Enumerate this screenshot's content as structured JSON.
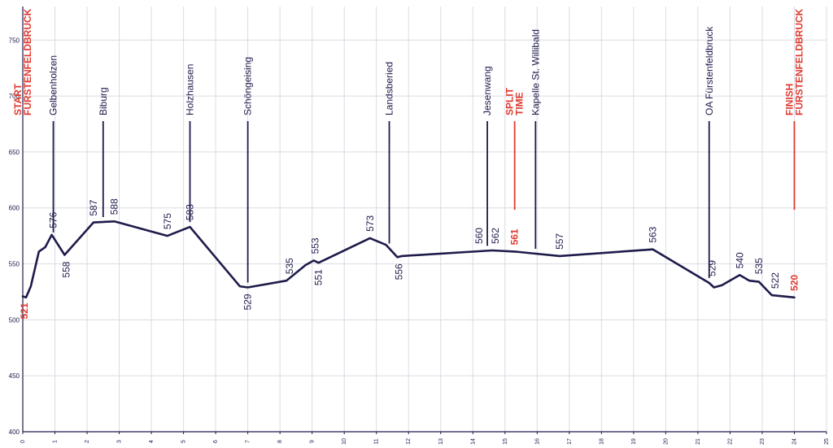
{
  "chart_data": {
    "type": "line",
    "title": "",
    "xlabel": "",
    "ylabel": "",
    "xlim": [
      0,
      25
    ],
    "ylim": [
      400,
      780
    ],
    "x_ticks": [
      0,
      1,
      2,
      3,
      4,
      5,
      6,
      7,
      8,
      9,
      10,
      11,
      12,
      13,
      14,
      15,
      16,
      17,
      18,
      19,
      20,
      21,
      22,
      23,
      24,
      25
    ],
    "y_ticks": [
      400,
      450,
      500,
      550,
      600,
      650,
      700,
      750
    ],
    "grid": true,
    "colors": {
      "line": "#1e1b4b",
      "highlight": "#e03a2f",
      "grid": "#d9dce3"
    },
    "series": [
      {
        "x": [
          0,
          0.1,
          0.25,
          0.5,
          0.7,
          0.9,
          1.3,
          2.2,
          2.85,
          4.5,
          5.2,
          6.75,
          7.0,
          8.2,
          8.8,
          9.05,
          9.2,
          10.8,
          11.3,
          11.65,
          11.8,
          14.6,
          15.3,
          16.7,
          19.6,
          21.35,
          21.5,
          21.75,
          22.3,
          22.6,
          22.9,
          23.3,
          24.0
        ],
        "y": [
          521,
          520,
          530,
          561,
          565,
          576,
          558,
          587,
          588,
          575,
          583,
          530,
          529,
          535,
          549,
          553,
          551,
          573,
          567,
          556,
          557,
          562,
          561,
          557,
          563,
          533,
          529,
          531,
          540,
          535,
          534,
          522,
          520
        ]
      }
    ],
    "locations": [
      {
        "name": "START FÜRSTENFELDBRUCK",
        "x": 0.0,
        "highlight": true,
        "marker_line": false
      },
      {
        "name": "Gelbenholzen",
        "x": 0.95,
        "highlight": false,
        "marker_line": true
      },
      {
        "name": "Biburg",
        "x": 2.5,
        "highlight": false,
        "marker_line": true
      },
      {
        "name": "Holzhausen",
        "x": 5.2,
        "highlight": false,
        "marker_line": true
      },
      {
        "name": "Schöngeising",
        "x": 7.0,
        "highlight": false,
        "marker_line": true
      },
      {
        "name": "Landsberied",
        "x": 11.4,
        "highlight": false,
        "marker_line": true
      },
      {
        "name": "Jesenwang",
        "x": 14.45,
        "highlight": false,
        "marker_line": true
      },
      {
        "name": "SPLIT TIME",
        "x": 15.3,
        "highlight": true,
        "marker_line": true
      },
      {
        "name": "Kapelle St. Willibald",
        "x": 15.95,
        "highlight": false,
        "marker_line": true
      },
      {
        "name": "OA Fürstenfeldbruck",
        "x": 21.35,
        "highlight": false,
        "marker_line": true
      },
      {
        "name": "FINISH FÜRSTENFELDBRUCK",
        "x": 24.0,
        "highlight": true,
        "marker_line": true
      }
    ],
    "elevation_labels": [
      {
        "text": "521",
        "x": 0.05,
        "y": 521,
        "highlight": true,
        "side": "below"
      },
      {
        "text": "576",
        "x": 0.95,
        "y": 576,
        "highlight": false,
        "side": "above"
      },
      {
        "text": "558",
        "x": 1.35,
        "y": 558,
        "highlight": false,
        "side": "below"
      },
      {
        "text": "587",
        "x": 2.2,
        "y": 587,
        "highlight": false,
        "side": "above"
      },
      {
        "text": "588",
        "x": 2.85,
        "y": 588,
        "highlight": false,
        "side": "above"
      },
      {
        "text": "575",
        "x": 4.5,
        "y": 575,
        "highlight": false,
        "side": "above"
      },
      {
        "text": "583",
        "x": 5.2,
        "y": 583,
        "highlight": false,
        "side": "above"
      },
      {
        "text": "529",
        "x": 7.0,
        "y": 529,
        "highlight": false,
        "side": "below"
      },
      {
        "text": "535",
        "x": 8.3,
        "y": 535,
        "highlight": false,
        "side": "above"
      },
      {
        "text": "553",
        "x": 9.1,
        "y": 553,
        "highlight": false,
        "side": "above"
      },
      {
        "text": "551",
        "x": 9.2,
        "y": 551,
        "highlight": false,
        "side": "below"
      },
      {
        "text": "573",
        "x": 10.8,
        "y": 573,
        "highlight": false,
        "side": "above"
      },
      {
        "text": "556",
        "x": 11.7,
        "y": 556,
        "highlight": false,
        "side": "below"
      },
      {
        "text": "560",
        "x": 14.2,
        "y": 562,
        "highlight": false,
        "side": "above"
      },
      {
        "text": "562",
        "x": 14.7,
        "y": 562,
        "highlight": false,
        "side": "above"
      },
      {
        "text": "561",
        "x": 15.3,
        "y": 561,
        "highlight": true,
        "side": "above"
      },
      {
        "text": "557",
        "x": 16.7,
        "y": 557,
        "highlight": false,
        "side": "above"
      },
      {
        "text": "563",
        "x": 19.6,
        "y": 563,
        "highlight": false,
        "side": "above"
      },
      {
        "text": "529",
        "x": 21.45,
        "y": 533,
        "highlight": false,
        "side": "above"
      },
      {
        "text": "540",
        "x": 22.3,
        "y": 540,
        "highlight": false,
        "side": "above"
      },
      {
        "text": "535",
        "x": 22.9,
        "y": 535,
        "highlight": false,
        "side": "above"
      },
      {
        "text": "522",
        "x": 23.4,
        "y": 522,
        "highlight": false,
        "side": "above"
      },
      {
        "text": "520",
        "x": 24.0,
        "y": 520,
        "highlight": true,
        "side": "above"
      }
    ]
  }
}
